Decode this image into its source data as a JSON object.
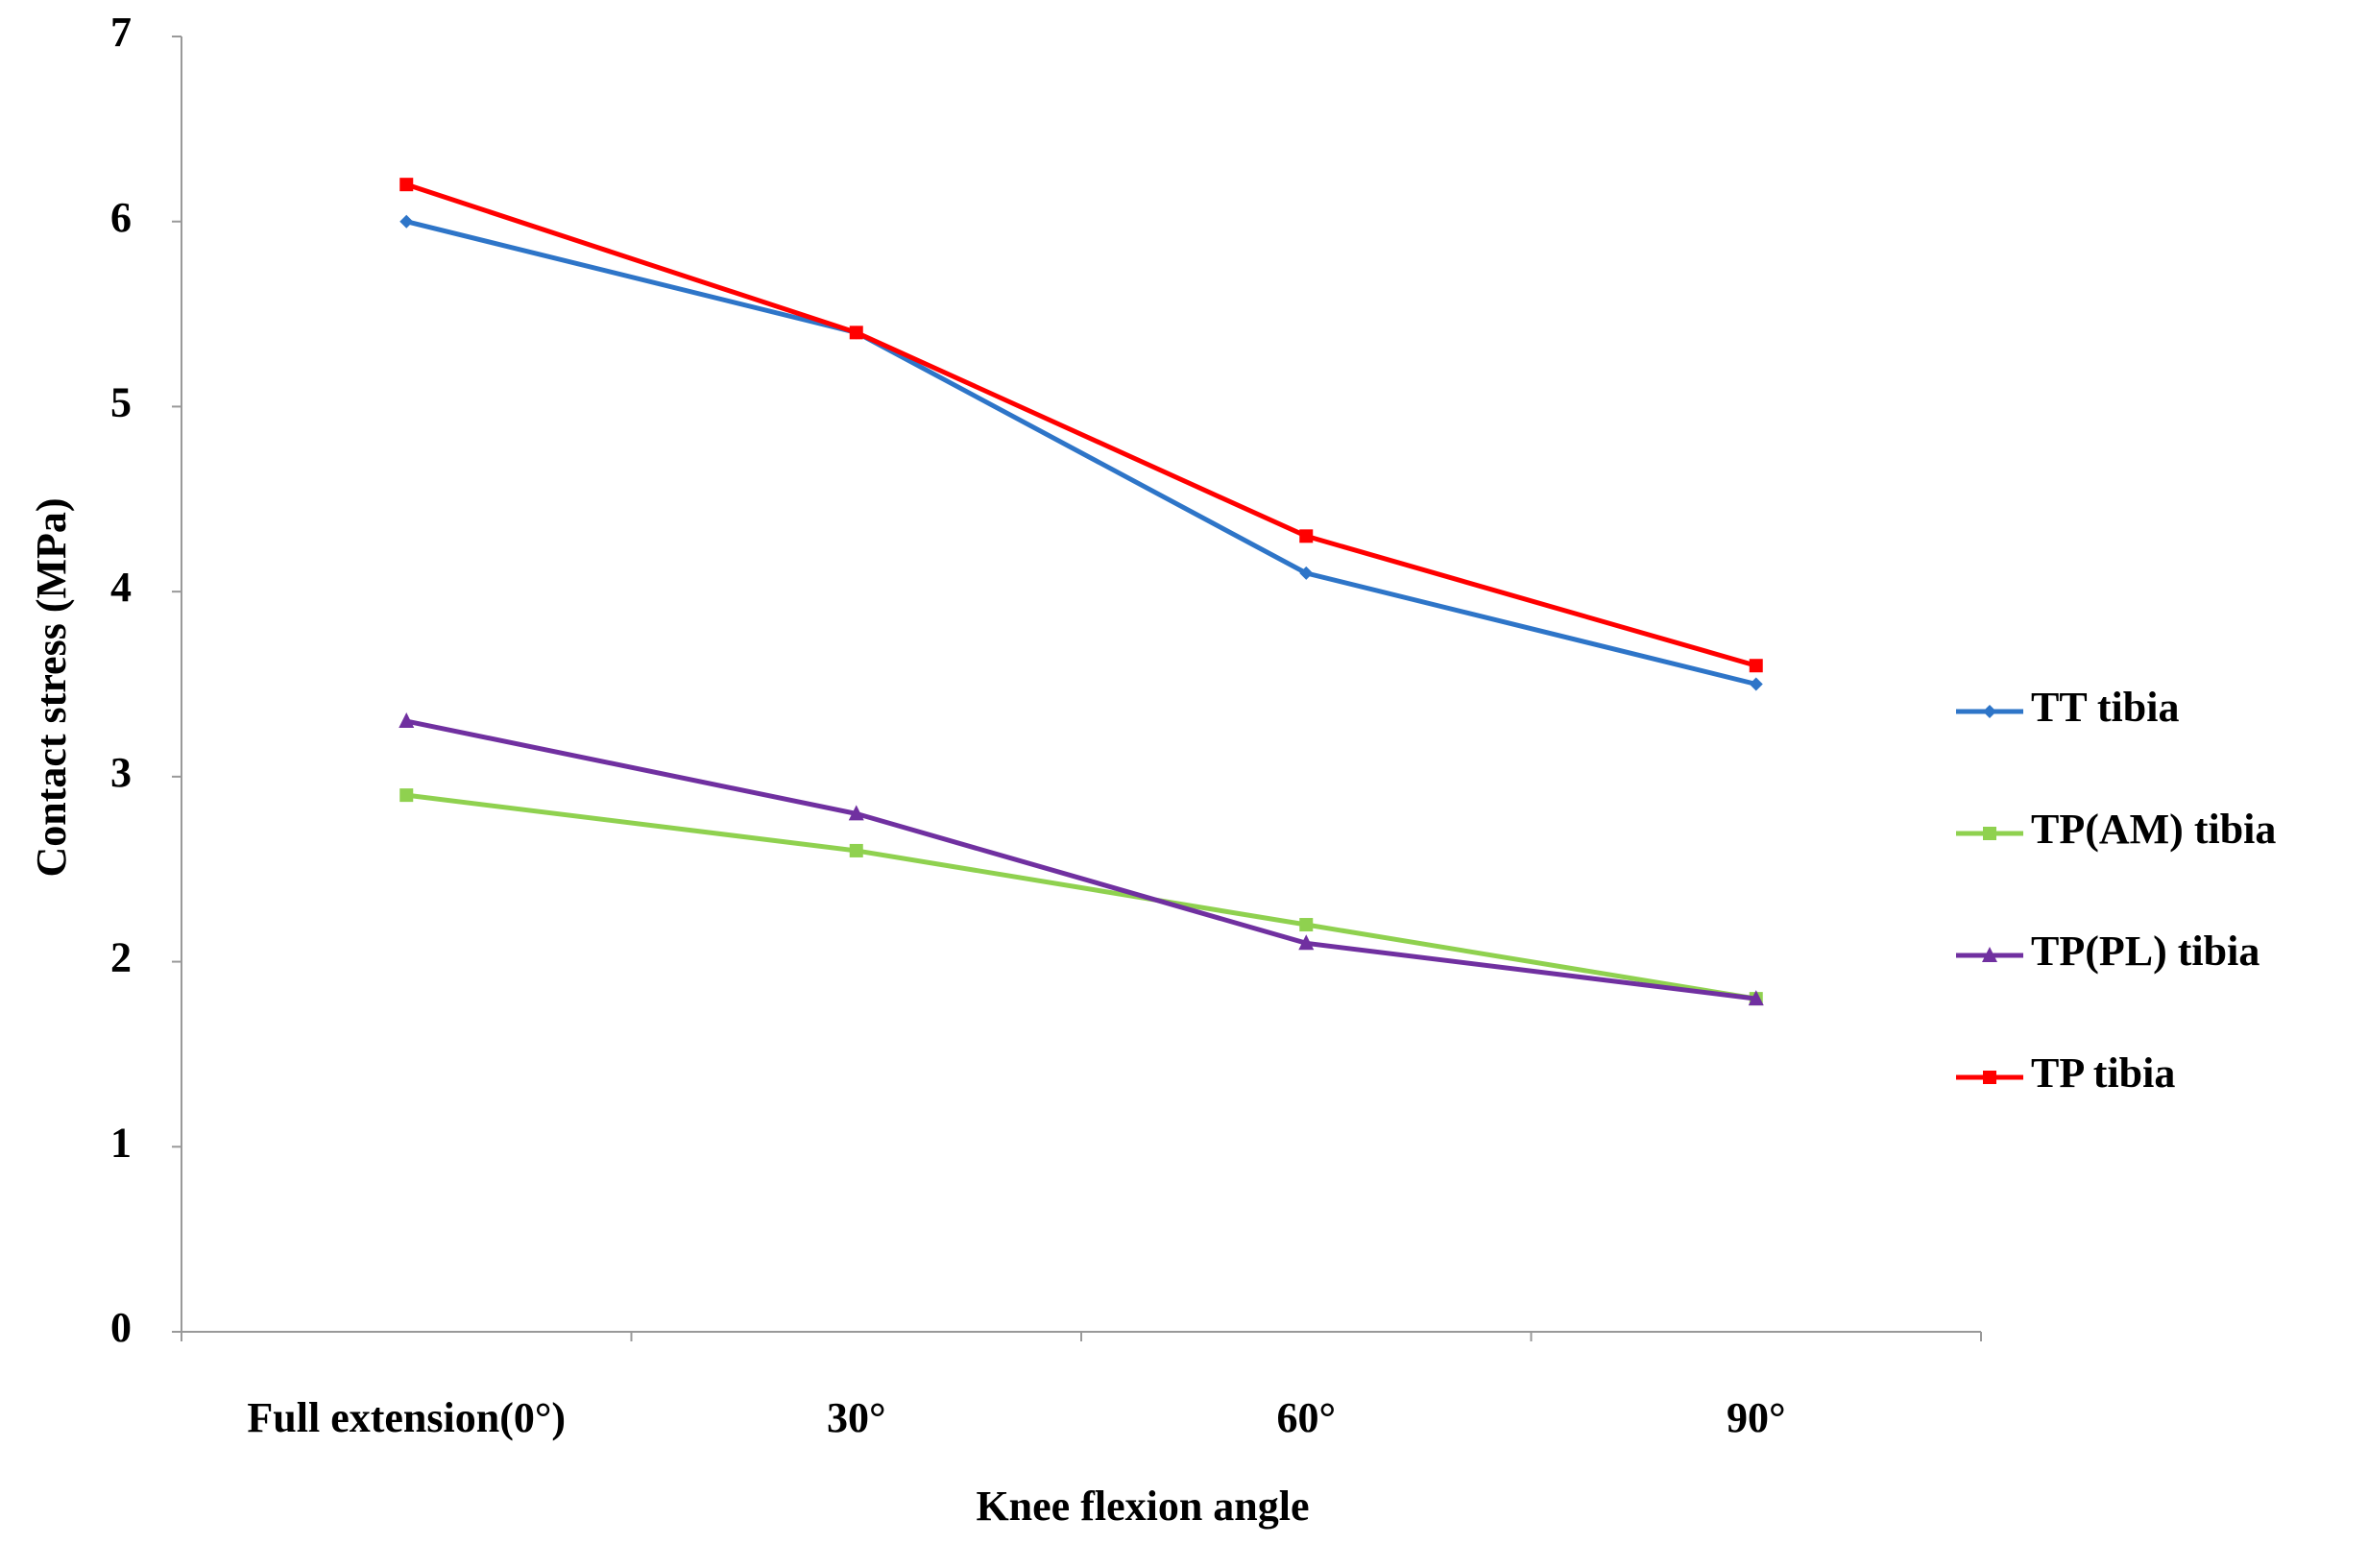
{
  "chart_data": {
    "type": "line",
    "x_label": "Knee flexion angle",
    "y_label": "Contact stress (MPa)",
    "categories": [
      "Full extension(0°)",
      "30°",
      "60°",
      "90°"
    ],
    "series": [
      {
        "name": "TT tibia",
        "color": "#2e75c8",
        "marker": "diamond",
        "values": [
          6.0,
          5.4,
          4.1,
          3.5
        ]
      },
      {
        "name": "TP(AM) tibia",
        "color": "#8fd14f",
        "marker": "square",
        "values": [
          2.9,
          2.6,
          2.2,
          1.8
        ]
      },
      {
        "name": "TP(PL) tibia",
        "color": "#7030a0",
        "marker": "triangle",
        "values": [
          3.3,
          2.8,
          2.1,
          1.8
        ]
      },
      {
        "name": "TP tibia",
        "color": "#ff0000",
        "marker": "square",
        "values": [
          6.2,
          5.4,
          4.3,
          3.6
        ]
      }
    ],
    "ylim": [
      0,
      7
    ],
    "yticks": [
      0,
      1,
      2,
      3,
      4,
      5,
      6,
      7
    ],
    "grid": false,
    "legend": "right"
  }
}
